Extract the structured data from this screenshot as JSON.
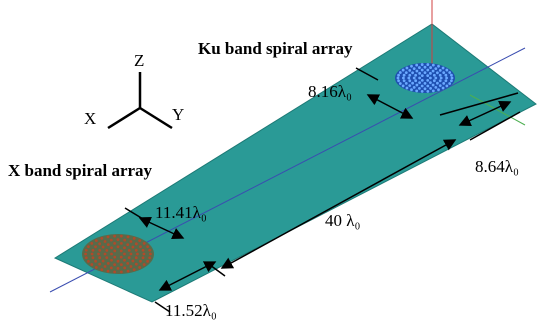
{
  "labels": {
    "ku_array": "Ku band spiral array",
    "x_array": "X band spiral array"
  },
  "axes": {
    "z": "Z",
    "x": "X",
    "y": "Y"
  },
  "dimensions": {
    "ku_diameter": "8.16λ₀",
    "plate_width_right": "8.64λ₀",
    "x_diameter": "11.41λ₀",
    "length": "40 λ₀",
    "plate_width_left": "11.52λ₀"
  }
}
